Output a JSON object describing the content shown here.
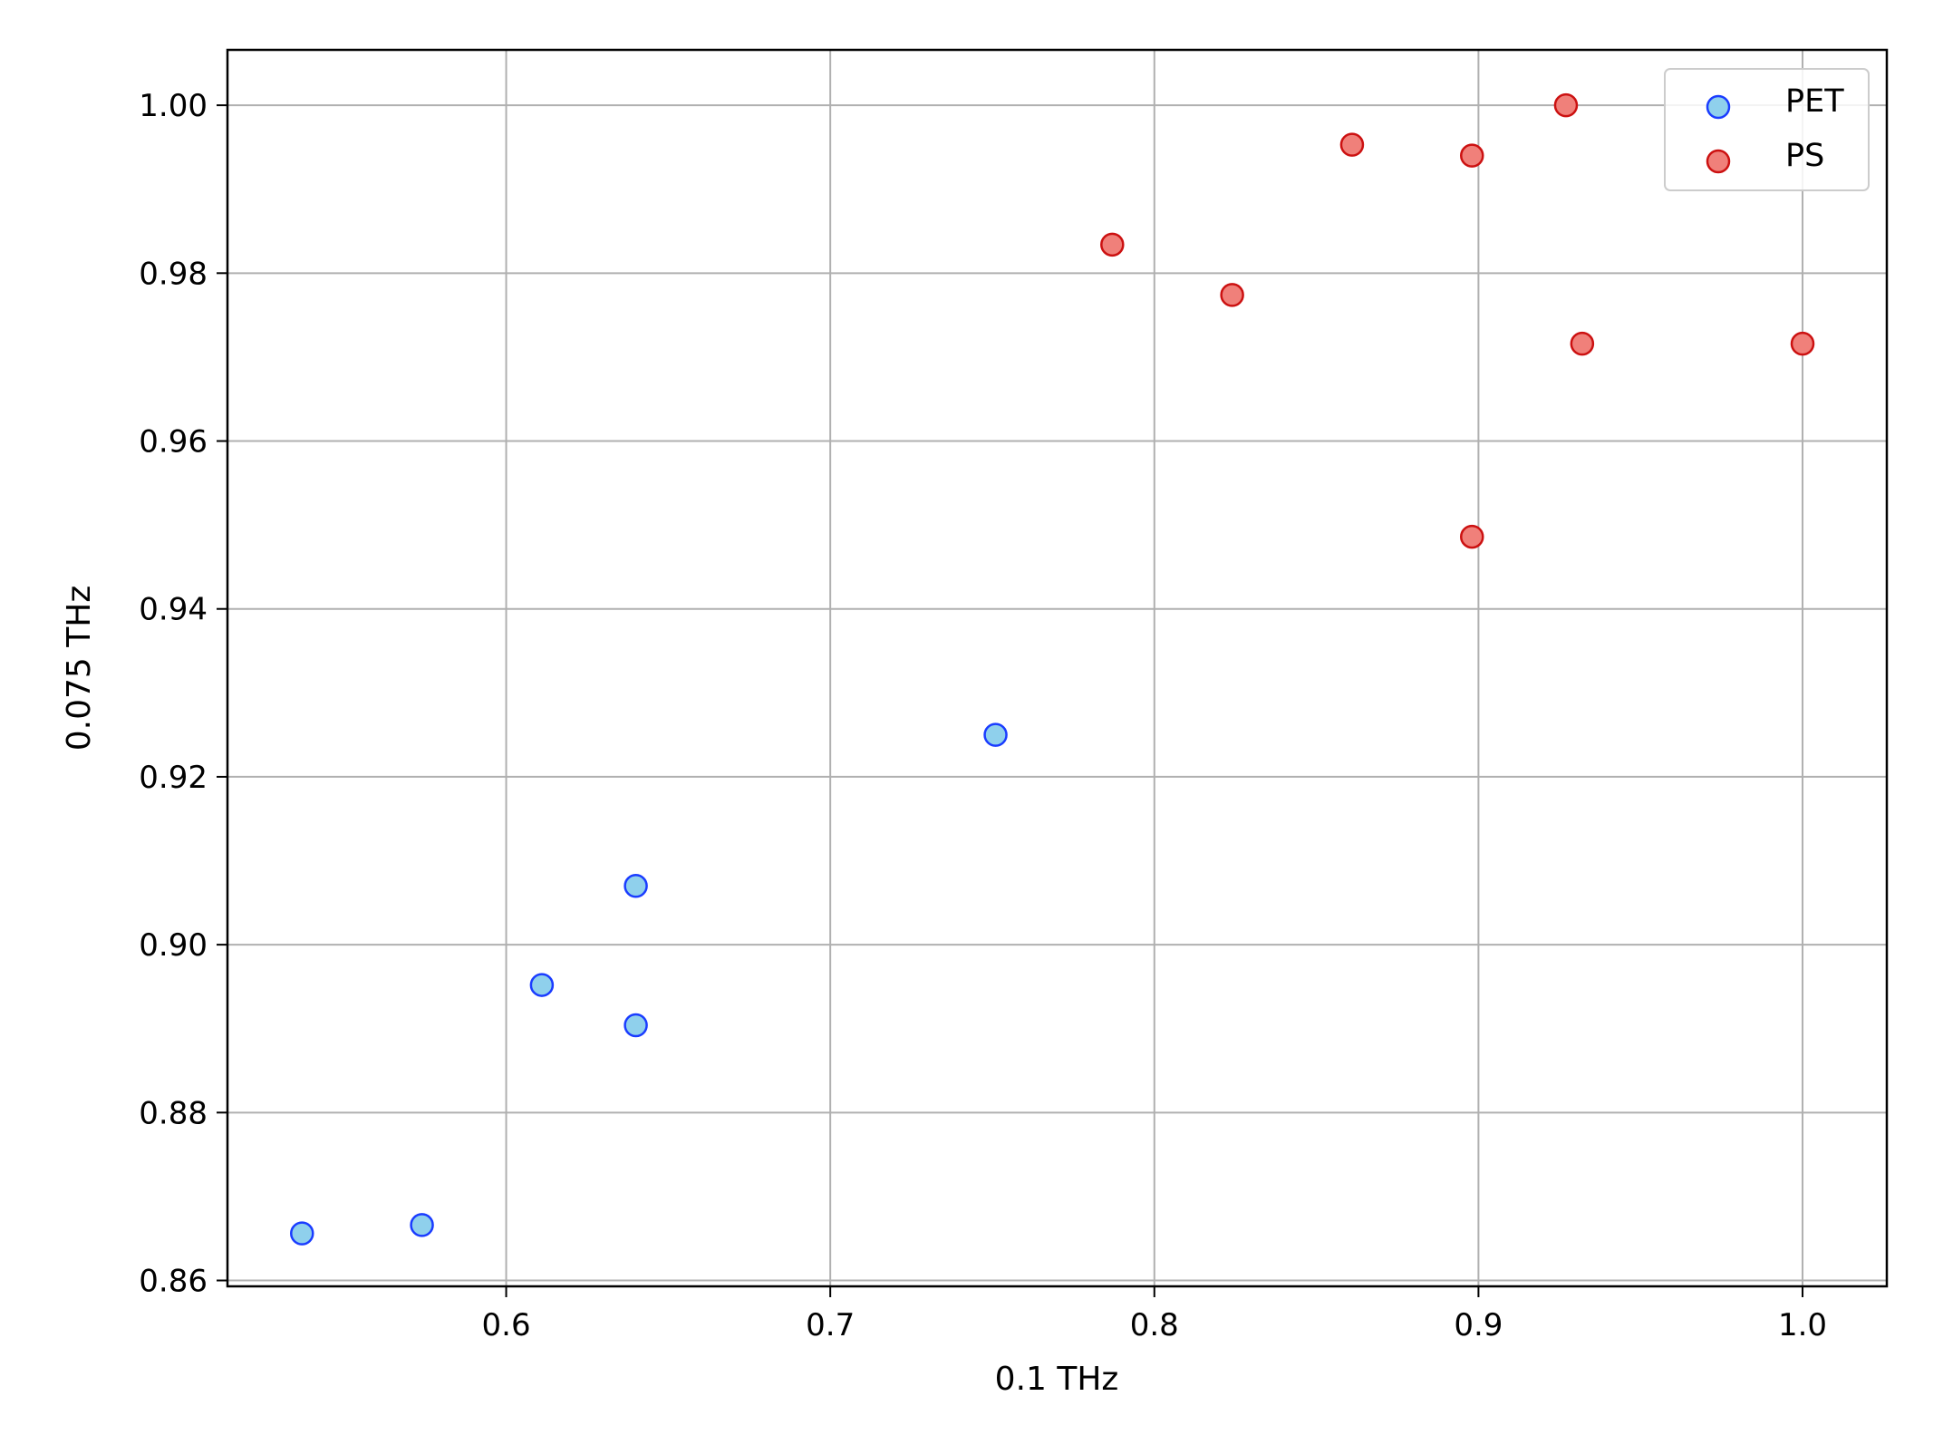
{
  "chart_data": {
    "type": "scatter",
    "title": "",
    "xlabel": "0.1 THz",
    "ylabel": "0.075 THz",
    "xlim": [
      0.514,
      1.026
    ],
    "ylim": [
      0.8593,
      1.0066
    ],
    "x_ticks": [
      0.6,
      0.7,
      0.8,
      0.9,
      1.0
    ],
    "x_tick_labels": [
      "0.6",
      "0.7",
      "0.8",
      "0.9",
      "1.0"
    ],
    "y_ticks": [
      0.86,
      0.88,
      0.9,
      0.92,
      0.94,
      0.96,
      0.98,
      1.0
    ],
    "y_tick_labels": [
      "0.86",
      "0.88",
      "0.90",
      "0.92",
      "0.94",
      "0.96",
      "0.98",
      "1.00"
    ],
    "grid": true,
    "legend": "top-right",
    "series": [
      {
        "name": "PET",
        "fill": "#8fd0ec",
        "edge": "#1a3cff",
        "points": [
          {
            "x": 0.537,
            "y": 0.8656
          },
          {
            "x": 0.574,
            "y": 0.8666
          },
          {
            "x": 0.611,
            "y": 0.8952
          },
          {
            "x": 0.64,
            "y": 0.8904
          },
          {
            "x": 0.64,
            "y": 0.907
          },
          {
            "x": 0.751,
            "y": 0.925
          }
        ]
      },
      {
        "name": "PS",
        "fill": "#f0807a",
        "edge": "#cc1111",
        "points": [
          {
            "x": 0.787,
            "y": 0.9834
          },
          {
            "x": 0.824,
            "y": 0.9774
          },
          {
            "x": 0.861,
            "y": 0.9953
          },
          {
            "x": 0.898,
            "y": 0.994
          },
          {
            "x": 0.898,
            "y": 0.9486
          },
          {
            "x": 0.927,
            "y": 1.0
          },
          {
            "x": 0.932,
            "y": 0.9716
          },
          {
            "x": 1.0,
            "y": 0.9716
          }
        ]
      }
    ]
  }
}
